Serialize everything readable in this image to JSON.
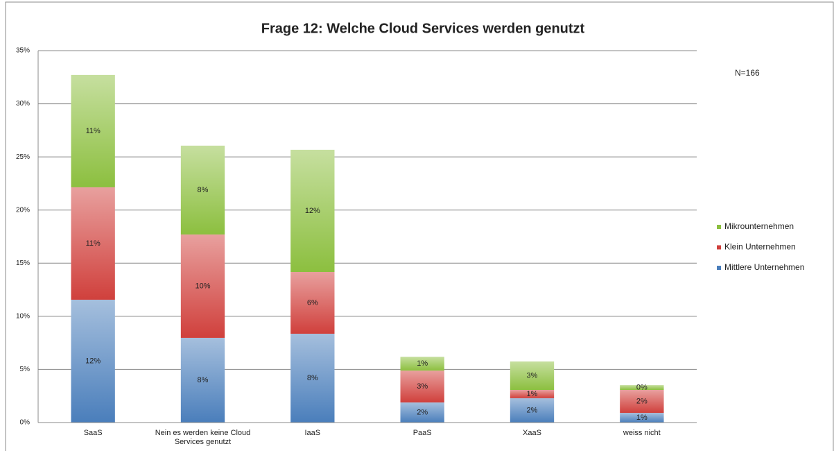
{
  "chart_data": {
    "type": "stacked_bar",
    "title": "Frage 12: Welche Cloud Services werden genutzt",
    "annotation": "N=166",
    "categories": [
      "SaaS",
      "Nein es werden keine Cloud Services genutzt",
      "IaaS",
      "PaaS",
      "XaaS",
      "weiss nicht"
    ],
    "series": [
      {
        "name": "Mittlere Unternehmen",
        "color": "#4a7ebb",
        "values": [
          11.56,
          7.97,
          8.36,
          1.89,
          2.29,
          0.91
        ],
        "value_labels": [
          "12%",
          "8%",
          "8%",
          "2%",
          "2%",
          "1%"
        ]
      },
      {
        "name": "Klein Unternehmen",
        "color": "#d0403c",
        "values": [
          10.58,
          9.73,
          5.81,
          3.0,
          0.78,
          2.16
        ],
        "value_labels": [
          "11%",
          "10%",
          "6%",
          "3%",
          "1%",
          "2%"
        ]
      },
      {
        "name": "Mikrounternehmen",
        "color": "#8cbf3f",
        "values": [
          10.58,
          8.36,
          11.5,
          1.3,
          2.68,
          0.45
        ],
        "value_labels": [
          "11%",
          "8%",
          "12%",
          "1%",
          "3%",
          "0%"
        ]
      }
    ],
    "ylim": [
      0,
      35
    ],
    "yticks": [
      {
        "value": 0,
        "label": "0%"
      },
      {
        "value": 5,
        "label": "5%"
      },
      {
        "value": 10,
        "label": "10%"
      },
      {
        "value": 15,
        "label": "15%"
      },
      {
        "value": 20,
        "label": "20%"
      },
      {
        "value": 25,
        "label": "25%"
      },
      {
        "value": 30,
        "label": "30%"
      },
      {
        "value": 35,
        "label": "35%"
      }
    ],
    "grid": true,
    "legend": "right"
  }
}
